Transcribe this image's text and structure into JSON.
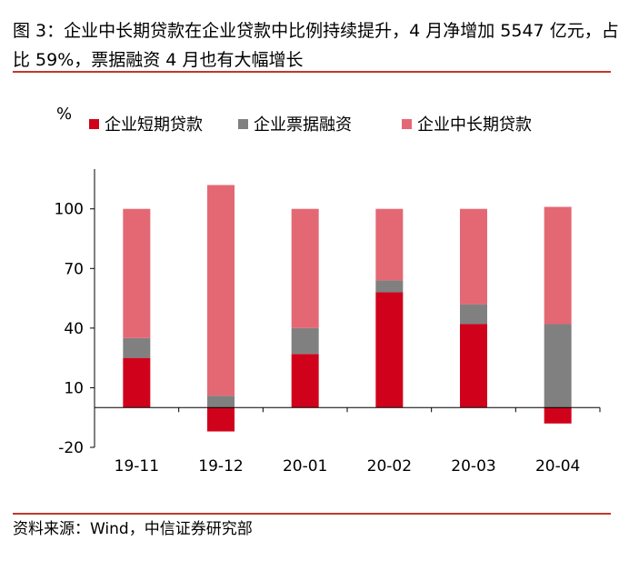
{
  "title": "图 3：企业中长期贷款在企业贷款中比例持续提升，4 月净增加 5547 亿元，占比 59%，票据融资 4 月也有大幅增长",
  "source": "资料来源：Wind，中信证券研究部",
  "colors": {
    "rule": "#c0392b"
  },
  "chart_data": {
    "type": "bar",
    "stacked": true,
    "ylabel": "%",
    "ylim": [
      -20,
      120
    ],
    "yticks": [
      -20,
      10,
      40,
      70,
      100
    ],
    "categories": [
      "19-11",
      "19-12",
      "20-01",
      "20-02",
      "20-03",
      "20-04"
    ],
    "legend_position": "top",
    "series": [
      {
        "name": "企业短期贷款",
        "color": "#d0021b",
        "values": [
          25,
          -12,
          27,
          58,
          42,
          -8
        ]
      },
      {
        "name": "企业票据融资",
        "color": "#808080",
        "values": [
          10,
          6,
          13,
          6,
          10,
          42
        ]
      },
      {
        "name": "企业中长期贷款",
        "color": "#e46874",
        "values": [
          65,
          106,
          60,
          36,
          48,
          59
        ]
      }
    ]
  }
}
